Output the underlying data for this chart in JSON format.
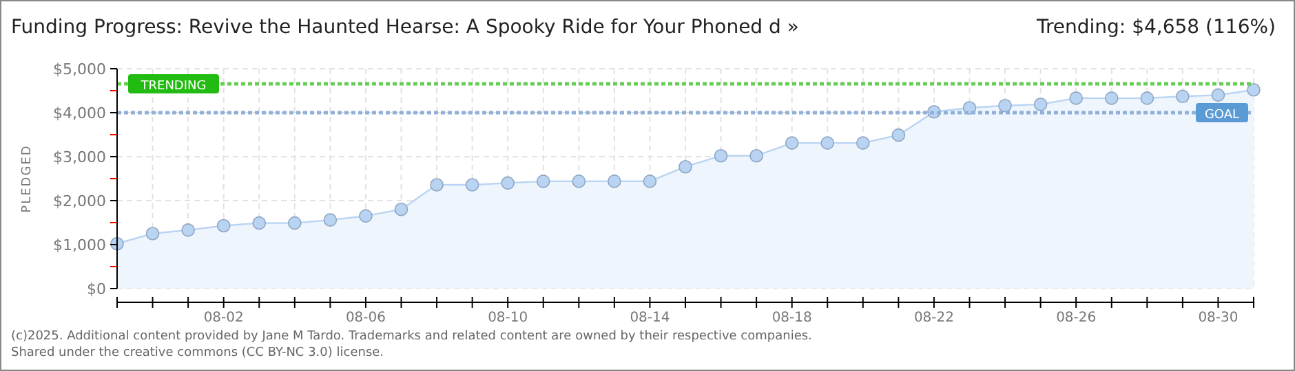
{
  "chart_data": {
    "type": "area",
    "title": "Funding Progress: Revive the Haunted Hearse: A Spooky Ride for Your Phoned  d »",
    "subtitle": "Trending: $4,658 (116%)",
    "ylabel": "PLEDGED",
    "x": [
      "2025-07-30",
      "2025-07-31",
      "2025-08-01",
      "2025-08-02",
      "2025-08-03",
      "2025-08-04",
      "2025-08-05",
      "2025-08-06",
      "2025-08-07",
      "2025-08-08",
      "2025-08-09",
      "2025-08-10",
      "2025-08-11",
      "2025-08-12",
      "2025-08-13",
      "2025-08-14",
      "2025-08-15",
      "2025-08-16",
      "2025-08-17",
      "2025-08-18",
      "2025-08-19",
      "2025-08-20",
      "2025-08-21",
      "2025-08-22",
      "2025-08-23",
      "2025-08-24",
      "2025-08-25",
      "2025-08-26",
      "2025-08-27",
      "2025-08-28",
      "2025-08-29",
      "2025-08-30",
      "2025-08-31"
    ],
    "series": [
      {
        "color": "#b9d4f2",
        "values": [
          1020,
          1250,
          1330,
          1430,
          1490,
          1490,
          1560,
          1650,
          1800,
          2360,
          2360,
          2400,
          2440,
          2440,
          2440,
          2440,
          2770,
          3020,
          3020,
          3310,
          3310,
          3310,
          3490,
          4020,
          4110,
          4160,
          4190,
          4330,
          4330,
          4330,
          4370,
          4400,
          4520
        ]
      }
    ],
    "marker": "circle",
    "grid": true,
    "xlim": [
      "2025-07-30",
      "2025-08-31"
    ],
    "xticks": [
      {
        "value": "2025-07-30",
        "label": null
      },
      {
        "value": "2025-07-31",
        "label": null
      },
      {
        "value": "2025-08-01",
        "label": null
      },
      {
        "value": "2025-08-02",
        "label": "08-02"
      },
      {
        "value": "2025-08-03",
        "label": null
      },
      {
        "value": "2025-08-04",
        "label": null
      },
      {
        "value": "2025-08-05",
        "label": null
      },
      {
        "value": "2025-08-06",
        "label": "08-06"
      },
      {
        "value": "2025-08-07",
        "label": null
      },
      {
        "value": "2025-08-08",
        "label": null
      },
      {
        "value": "2025-08-09",
        "label": null
      },
      {
        "value": "2025-08-10",
        "label": "08-10"
      },
      {
        "value": "2025-08-11",
        "label": null
      },
      {
        "value": "2025-08-12",
        "label": null
      },
      {
        "value": "2025-08-13",
        "label": null
      },
      {
        "value": "2025-08-14",
        "label": "08-14"
      },
      {
        "value": "2025-08-15",
        "label": null
      },
      {
        "value": "2025-08-16",
        "label": null
      },
      {
        "value": "2025-08-17",
        "label": null
      },
      {
        "value": "2025-08-18",
        "label": "08-18"
      },
      {
        "value": "2025-08-19",
        "label": null
      },
      {
        "value": "2025-08-20",
        "label": null
      },
      {
        "value": "2025-08-21",
        "label": null
      },
      {
        "value": "2025-08-22",
        "label": "08-22"
      },
      {
        "value": "2025-08-23",
        "label": null
      },
      {
        "value": "2025-08-24",
        "label": null
      },
      {
        "value": "2025-08-25",
        "label": null
      },
      {
        "value": "2025-08-26",
        "label": "08-26"
      },
      {
        "value": "2025-08-27",
        "label": null
      },
      {
        "value": "2025-08-28",
        "label": null
      },
      {
        "value": "2025-08-29",
        "label": null
      },
      {
        "value": "2025-08-30",
        "label": "08-30"
      },
      {
        "value": "2025-08-31",
        "label": null
      }
    ],
    "ylim": [
      0,
      5000
    ],
    "yticks": [
      {
        "value": 0,
        "label": "$0"
      },
      {
        "value": 500,
        "label": null
      },
      {
        "value": 1000,
        "label": "$1,000"
      },
      {
        "value": 1500,
        "label": null
      },
      {
        "value": 2000,
        "label": "$2,000"
      },
      {
        "value": 2500,
        "label": null
      },
      {
        "value": 3000,
        "label": "$3,000"
      },
      {
        "value": 3500,
        "label": null
      },
      {
        "value": 4000,
        "label": "$4,000"
      },
      {
        "value": 4500,
        "label": null
      },
      {
        "value": 5000,
        "label": "$5,000"
      }
    ],
    "ref_lines": [
      {
        "axis": "y",
        "value": 4658,
        "label": "TRENDING",
        "color": "#66cc55",
        "line_style": "dotted"
      },
      {
        "axis": "y",
        "value": 4000,
        "label": "GOAL",
        "color": "#8fb0d8",
        "line_style": "dotted"
      }
    ],
    "annotations": [
      "(c)2025. Additional content provided by Jane M Tardo. Trademarks and related content are owned by their respective companies.",
      "Shared under the creative commons (CC BY-NC 3.0) license."
    ]
  }
}
